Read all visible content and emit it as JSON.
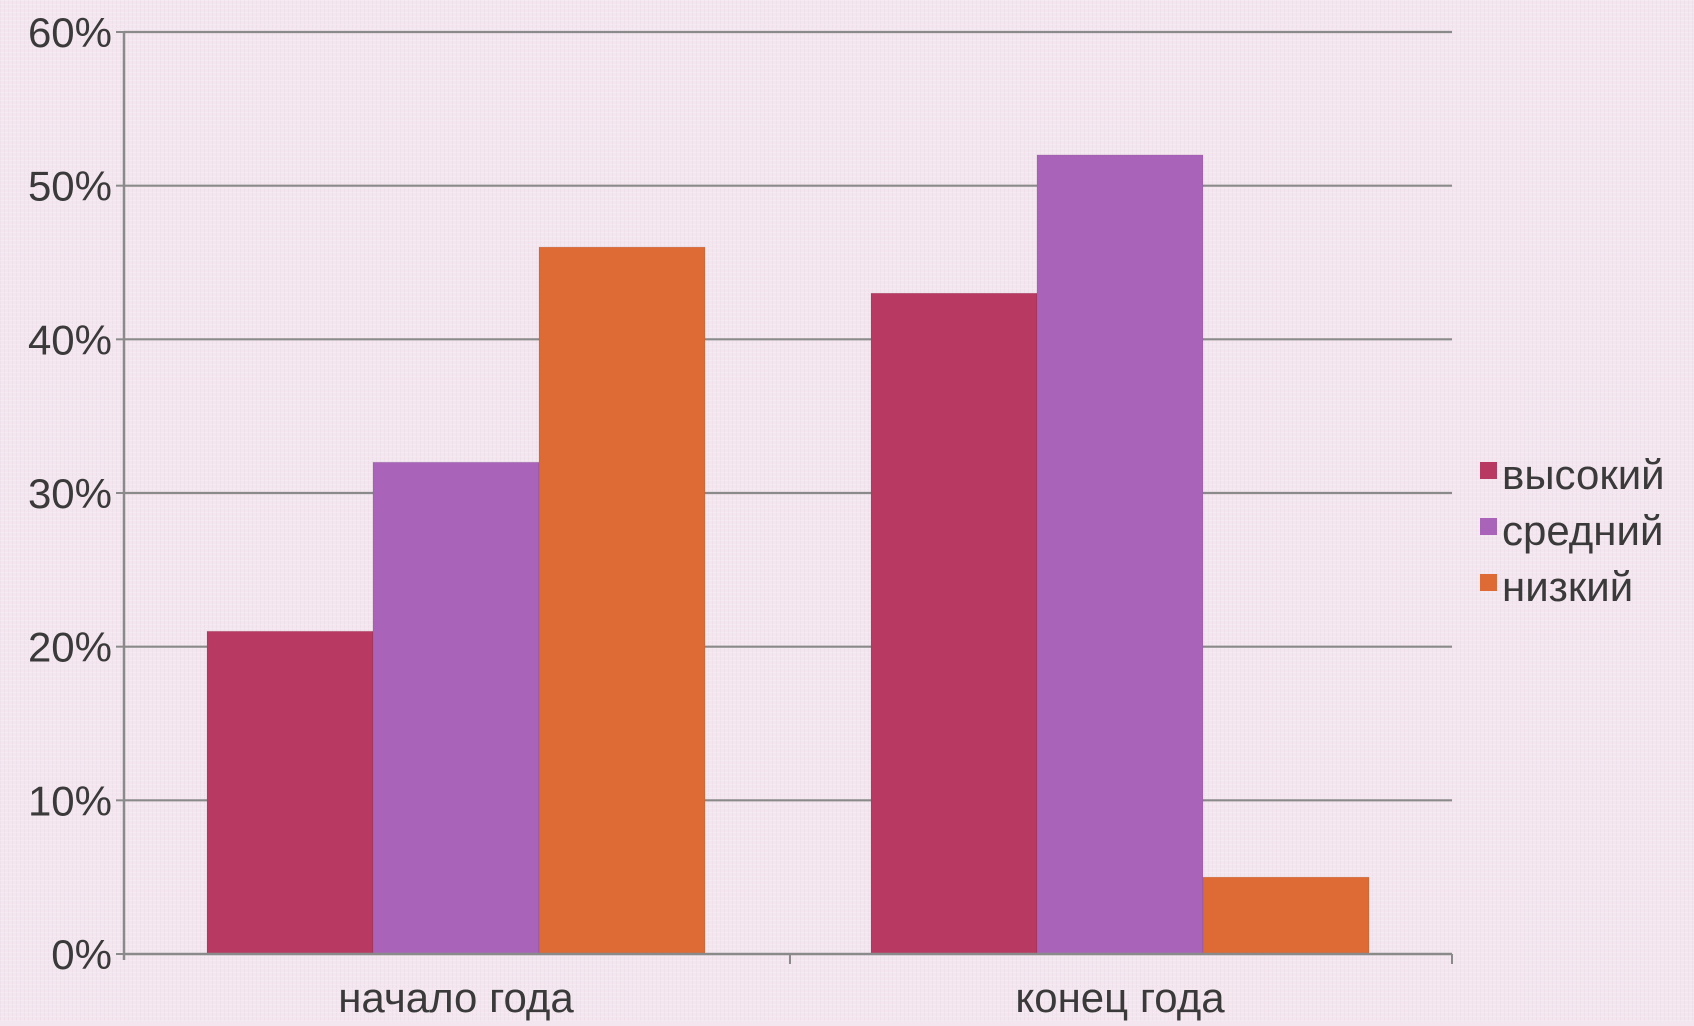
{
  "chart_data": {
    "type": "bar",
    "categories": [
      "начало года",
      "конец года"
    ],
    "series": [
      {
        "name": "высокий",
        "values": [
          21,
          43
        ],
        "color": "#b83a63"
      },
      {
        "name": "средний",
        "values": [
          32,
          52
        ],
        "color": "#a964ba"
      },
      {
        "name": "низкий",
        "values": [
          46,
          5
        ],
        "color": "#de6a35"
      }
    ],
    "y_ticks": [
      0,
      10,
      20,
      30,
      40,
      50,
      60
    ],
    "y_tick_labels": [
      "0%",
      "10%",
      "20%",
      "30%",
      "40%",
      "50%",
      "60%"
    ],
    "ylim": [
      0,
      60
    ],
    "grid": true,
    "legend_position": "right",
    "title": "",
    "xlabel": "",
    "ylabel": ""
  }
}
